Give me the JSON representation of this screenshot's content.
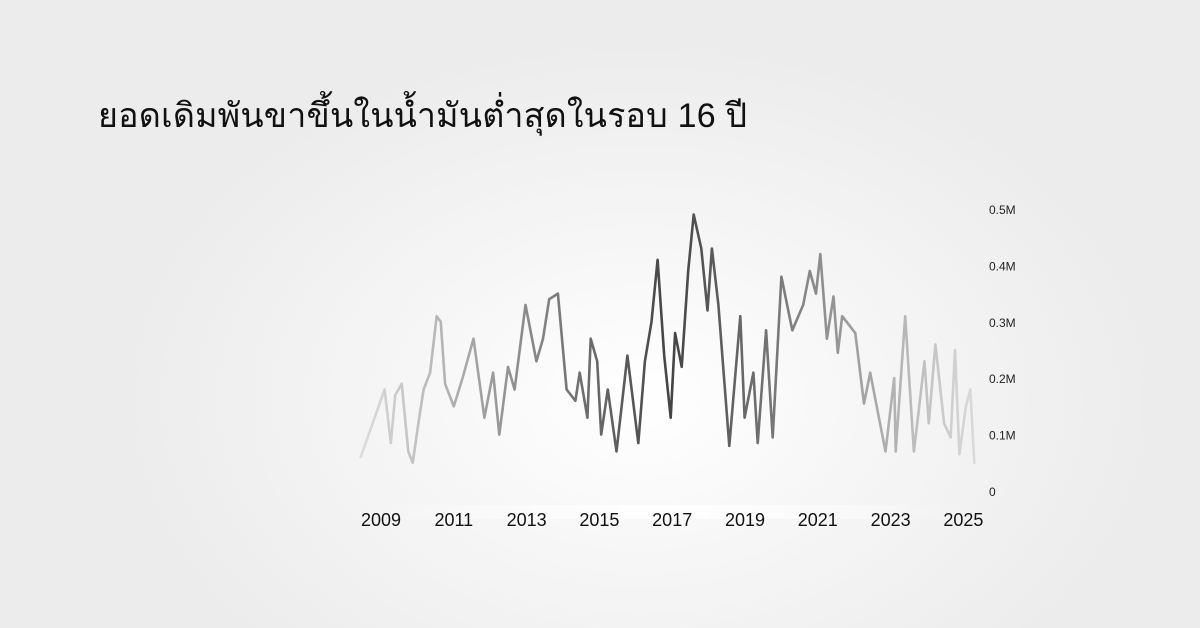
{
  "title": "ยอดเดิมพันขาขึ้นในน้ำมันต่ำสุดในรอบ 16 ปี",
  "chart_data": {
    "type": "line",
    "title": "ยอดเดิมพันขาขึ้นในน้ำมันต่ำสุดในรอบ 16 ปี",
    "xlabel": "",
    "ylabel": "",
    "xlim": [
      2008.4,
      2025.3
    ],
    "ylim": [
      0,
      0.5
    ],
    "y_unit": "M",
    "grid": false,
    "legend": "none",
    "y_axis_position": "right",
    "x_tick_labels": [
      "2009",
      "2011",
      "2013",
      "2015",
      "2017",
      "2019",
      "2021",
      "2023",
      "2025"
    ],
    "x_ticks": [
      2009,
      2011,
      2013,
      2015,
      2017,
      2019,
      2021,
      2023,
      2025
    ],
    "y_tick_labels": [
      "0",
      "0.1M",
      "0.2M",
      "0.3M",
      "0.4M",
      "0.5M"
    ],
    "y_ticks": [
      0,
      0.1,
      0.2,
      0.3,
      0.4,
      0.5
    ],
    "colors": {
      "ends": "#dddddd",
      "mid": "#999999",
      "peak": "#444444"
    },
    "series": [
      {
        "x": [
          2008.44,
          2009.1,
          2009.27,
          2009.39,
          2009.57,
          2009.75,
          2009.87,
          2010.05,
          2010.17,
          2010.35,
          2010.53,
          2010.64,
          2010.76,
          2011.0,
          2011.24,
          2011.54,
          2011.84,
          2012.08,
          2012.25,
          2012.49,
          2012.67,
          2012.97,
          2013.27,
          2013.45,
          2013.62,
          2013.86,
          2014.1,
          2014.34,
          2014.46,
          2014.67,
          2014.76,
          2014.94,
          2015.05,
          2015.23,
          2015.47,
          2015.77,
          2016.07,
          2016.25,
          2016.43,
          2016.6,
          2016.78,
          2016.96,
          2017.08,
          2017.26,
          2017.44,
          2017.59,
          2017.8,
          2017.97,
          2018.09,
          2018.27,
          2018.57,
          2018.87,
          2018.99,
          2019.23,
          2019.35,
          2019.58,
          2019.76,
          2020.0,
          2020.3,
          2020.6,
          2020.78,
          2020.95,
          2021.07,
          2021.25,
          2021.43,
          2021.55,
          2021.67,
          2022.03,
          2022.27,
          2022.44,
          2022.86,
          2023.1,
          2023.14,
          2023.4,
          2023.64,
          2023.93,
          2024.05,
          2024.23,
          2024.47,
          2024.65,
          2024.77,
          2024.89,
          2025.07,
          2025.19,
          2025.3
        ],
        "y": [
          0.06,
          0.18,
          0.085,
          0.17,
          0.19,
          0.07,
          0.05,
          0.13,
          0.18,
          0.21,
          0.31,
          0.3,
          0.19,
          0.15,
          0.2,
          0.27,
          0.13,
          0.21,
          0.1,
          0.22,
          0.18,
          0.33,
          0.23,
          0.27,
          0.34,
          0.35,
          0.18,
          0.16,
          0.21,
          0.13,
          0.27,
          0.23,
          0.1,
          0.18,
          0.07,
          0.24,
          0.085,
          0.23,
          0.3,
          0.41,
          0.24,
          0.13,
          0.28,
          0.22,
          0.39,
          0.49,
          0.43,
          0.32,
          0.43,
          0.33,
          0.08,
          0.31,
          0.13,
          0.21,
          0.085,
          0.285,
          0.095,
          0.38,
          0.285,
          0.33,
          0.39,
          0.35,
          0.42,
          0.27,
          0.345,
          0.245,
          0.31,
          0.28,
          0.155,
          0.21,
          0.07,
          0.2,
          0.07,
          0.31,
          0.07,
          0.23,
          0.12,
          0.26,
          0.12,
          0.095,
          0.25,
          0.065,
          0.15,
          0.18,
          0.05
        ]
      }
    ]
  }
}
